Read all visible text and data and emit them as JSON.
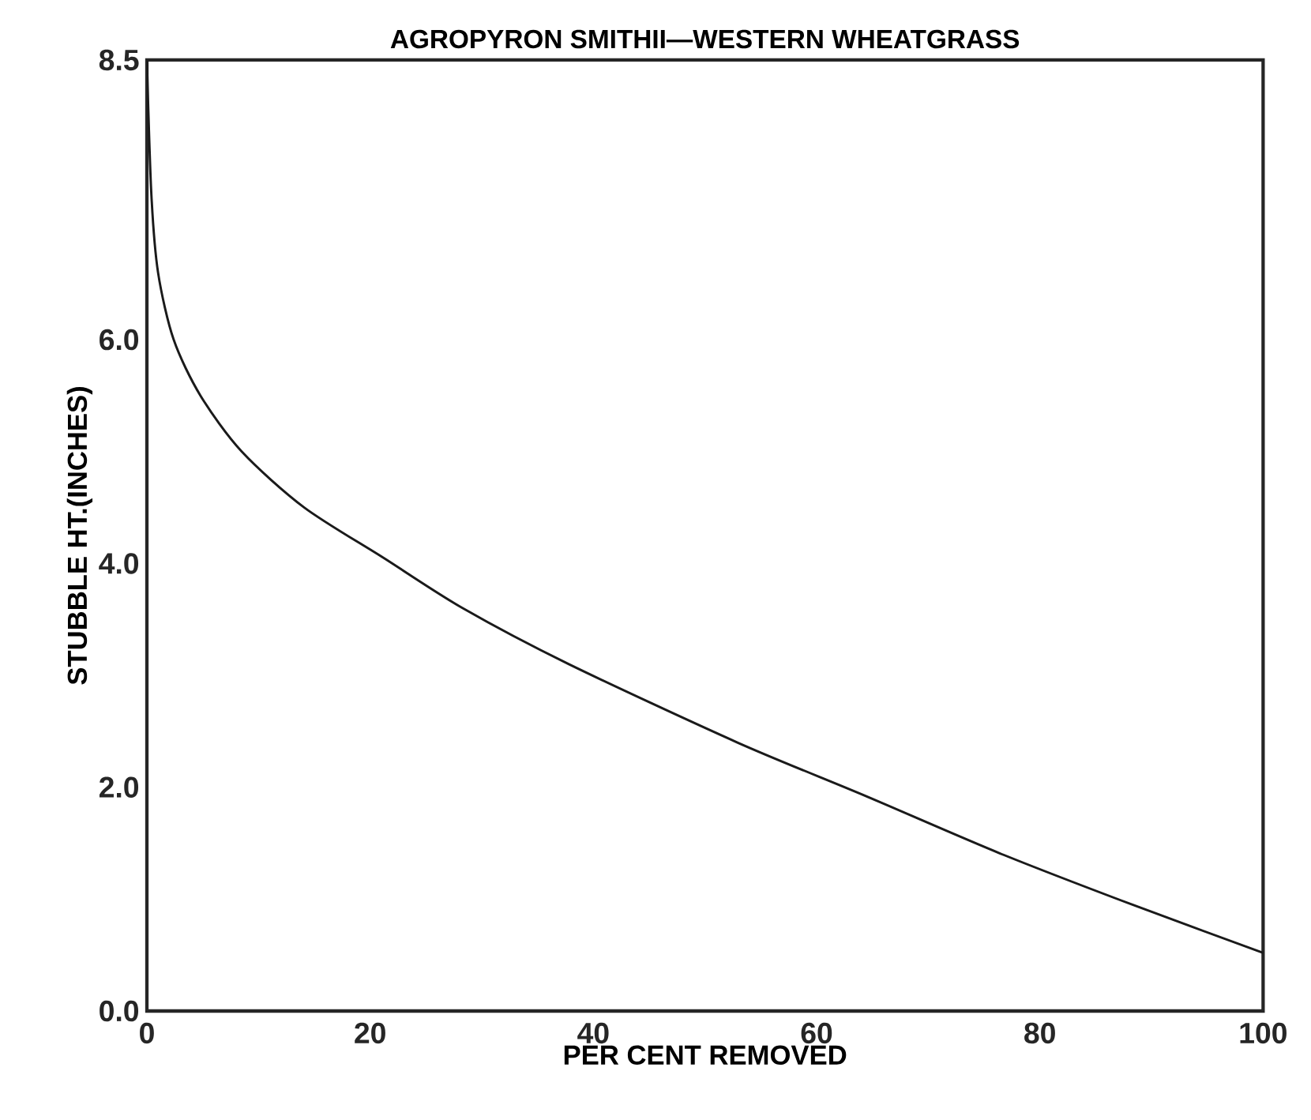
{
  "chart_data": {
    "type": "line",
    "title": "AGROPYRON SMITHII—WESTERN WHEATGRASS",
    "xlabel": "PER CENT  REMOVED",
    "ylabel": "STUBBLE HT.(INCHES)",
    "x": [
      0,
      0.4,
      1.0,
      2.4,
      4.8,
      8.5,
      14.1,
      21.2,
      28.3,
      37.8,
      52.9,
      64.2,
      76.4,
      88.3,
      100
    ],
    "series": [
      {
        "color": "#1a1a1a",
        "values": [
          8.5,
          7.3,
          6.6,
          6.0,
          5.5,
          5.0,
          4.5,
          4.05,
          3.6,
          3.1,
          2.4,
          1.93,
          1.41,
          0.95,
          0.52
        ]
      }
    ],
    "xlim": [
      0,
      100
    ],
    "ylim": [
      0,
      8.5
    ],
    "xticks": [
      0,
      20,
      40,
      60,
      80,
      100
    ],
    "yticks": [
      {
        "value": 0,
        "label": "0.0"
      },
      {
        "value": 2,
        "label": "2.0"
      },
      {
        "value": 4,
        "label": "4.0"
      },
      {
        "value": 6,
        "label": "6.0"
      },
      {
        "value": 8.5,
        "label": "8.5"
      }
    ],
    "grid": false,
    "legend": false,
    "marker": "none",
    "line_style": "solid"
  }
}
